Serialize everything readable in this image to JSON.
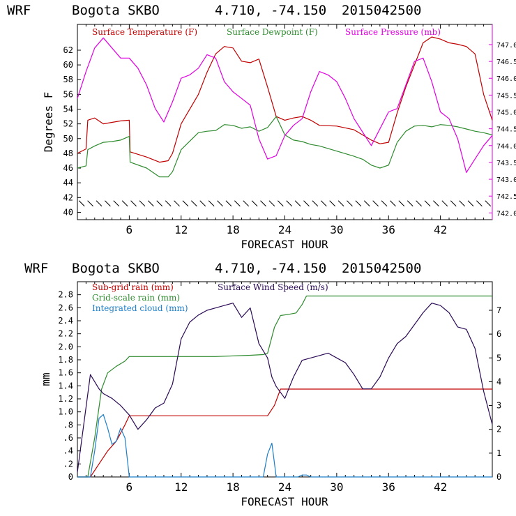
{
  "colors": {
    "temperature": "#c00000",
    "dewpoint": "#2e8b2e",
    "pressure": "#e000e0",
    "subgrid_rain": "#c00000",
    "gridscale_rain": "#2e8b2e",
    "cloud": "#1e7fc8",
    "wind": "#2a0a55"
  },
  "chart_data": [
    {
      "type": "line",
      "title": {
        "model": "WRF",
        "station": "Bogota SKBO",
        "coords": "4.710, -74.150",
        "init": "2015042500"
      },
      "xlabel": "FORECAST HOUR",
      "ylabel": "Degrees F",
      "xlim": [
        0,
        48
      ],
      "ylim": [
        39,
        65.5
      ],
      "y2lim": [
        741.8,
        747.6
      ],
      "x_ticks": [
        "6",
        "12",
        "18",
        "24",
        "30",
        "36",
        "42"
      ],
      "y_ticks": [
        "40",
        "42",
        "44",
        "46",
        "48",
        "50",
        "52",
        "54",
        "56",
        "58",
        "60",
        "62"
      ],
      "y2_ticks": [
        "742.0",
        "742.5",
        "743.0",
        "743.5",
        "744.0",
        "744.5",
        "745.0",
        "745.5",
        "746.0",
        "746.5",
        "747.0"
      ],
      "wind_barbs": "row of wind barbs along y=41",
      "series": [
        {
          "name": "Surface Temperature (F)",
          "axis": "left",
          "x": [
            0,
            1,
            1.2,
            2,
            3,
            4,
            5,
            6,
            6.1,
            8,
            9.5,
            10.5,
            11,
            12,
            14,
            15,
            16,
            17,
            18,
            19,
            20,
            21,
            22,
            23,
            24,
            25,
            26,
            27,
            28,
            30,
            32,
            33,
            34,
            35,
            36,
            37,
            38,
            39,
            40,
            41,
            42,
            43,
            44,
            45,
            46,
            47,
            48
          ],
          "values": [
            48.0,
            48.6,
            52.5,
            52.8,
            52.0,
            52.2,
            52.4,
            52.5,
            48.2,
            47.5,
            46.8,
            47.0,
            48.0,
            52.0,
            56.0,
            59.0,
            61.5,
            62.5,
            62.3,
            60.5,
            60.3,
            60.8,
            57.0,
            53.0,
            52.5,
            52.8,
            53.0,
            52.5,
            51.8,
            51.7,
            51.2,
            50.5,
            49.8,
            49.3,
            49.5,
            53.5,
            57.0,
            60.0,
            63.0,
            63.8,
            63.5,
            63.0,
            62.8,
            62.5,
            61.5,
            56.0,
            52.5
          ]
        },
        {
          "name": "Surface Dewpoint (F)",
          "axis": "left",
          "x": [
            0,
            1,
            1.2,
            2,
            3,
            4,
            5,
            6,
            6.1,
            8,
            9.5,
            10.5,
            11,
            12,
            14,
            15,
            16,
            17,
            18,
            19,
            20,
            21,
            22,
            23,
            24,
            25,
            26,
            27,
            28,
            30,
            32,
            33,
            34,
            35,
            36,
            37,
            38,
            39,
            40,
            41,
            42,
            43,
            44,
            45,
            46,
            47,
            48
          ],
          "values": [
            46.0,
            46.3,
            48.5,
            49.0,
            49.5,
            49.6,
            49.8,
            50.3,
            46.8,
            46.0,
            44.8,
            44.8,
            45.5,
            48.5,
            50.8,
            51.0,
            51.1,
            51.9,
            51.8,
            51.4,
            51.6,
            51.0,
            51.5,
            53.0,
            50.5,
            49.8,
            49.6,
            49.2,
            49.0,
            48.3,
            47.6,
            47.2,
            46.4,
            46.0,
            46.4,
            49.5,
            51.0,
            51.7,
            51.8,
            51.6,
            51.9,
            51.8,
            51.6,
            51.3,
            51.0,
            50.8,
            50.5
          ]
        },
        {
          "name": "Surface Pressure (mb)",
          "axis": "right",
          "x": [
            0,
            1,
            2,
            3,
            4,
            5,
            6,
            7,
            8,
            9,
            10,
            11,
            12,
            13,
            14,
            15,
            16,
            17,
            18,
            19,
            20,
            21,
            22,
            23,
            24,
            25,
            26,
            27,
            28,
            29,
            30,
            31,
            32,
            33,
            34,
            35,
            36,
            37,
            38,
            39,
            40,
            41,
            42,
            43,
            44,
            45,
            46,
            47,
            48
          ],
          "values": [
            745.4,
            746.2,
            746.9,
            747.2,
            746.9,
            746.6,
            746.6,
            746.3,
            745.8,
            745.1,
            744.7,
            745.3,
            746.0,
            746.1,
            746.3,
            746.7,
            746.6,
            745.9,
            745.6,
            745.4,
            745.2,
            744.2,
            743.6,
            743.7,
            744.3,
            744.6,
            744.8,
            745.6,
            746.2,
            746.1,
            745.9,
            745.4,
            744.8,
            744.4,
            744.0,
            744.5,
            745.0,
            745.1,
            745.8,
            746.5,
            746.6,
            745.9,
            745.0,
            744.8,
            744.2,
            743.2,
            743.6,
            744.0,
            744.3
          ]
        }
      ]
    },
    {
      "type": "line",
      "title": {
        "model": "WRF",
        "station": "Bogota SKBO",
        "coords": "4.710, -74.150",
        "init": "2015042500"
      },
      "xlabel": "FORECAST HOUR",
      "ylabel": "mm",
      "xlim": [
        0,
        48
      ],
      "ylim": [
        0,
        3.0
      ],
      "y2lim": [
        0,
        8.2
      ],
      "x_ticks": [
        "6",
        "12",
        "18",
        "24",
        "30",
        "36",
        "42"
      ],
      "y_ticks": [
        "0",
        ".2",
        ".4",
        ".6",
        ".8",
        "1.0",
        "1.2",
        "1.4",
        "1.6",
        "1.8",
        "2.0",
        "2.2",
        "2.4",
        "2.6",
        "2.8"
      ],
      "y2_ticks": [
        "0",
        "1",
        "2",
        "3",
        "4",
        "5",
        "6",
        "7"
      ],
      "series": [
        {
          "name": "Sub-grid rain (mm)",
          "axis": "left",
          "x": [
            0,
            1.5,
            2.5,
            3.5,
            4.5,
            5.5,
            6,
            8,
            10,
            12,
            16,
            20,
            22,
            22.8,
            23.5,
            30,
            36,
            42,
            48
          ],
          "values": [
            0,
            0,
            0.2,
            0.4,
            0.55,
            0.8,
            0.94,
            0.94,
            0.94,
            0.94,
            0.94,
            0.94,
            0.94,
            1.1,
            1.35,
            1.35,
            1.35,
            1.35,
            1.35
          ]
        },
        {
          "name": "Grid-scale rain (mm)",
          "axis": "left",
          "x": [
            0,
            1.2,
            2,
            2.8,
            3.5,
            4.5,
            5.5,
            6,
            8,
            12,
            16,
            20,
            21.5,
            22,
            22.8,
            23.5,
            24.5,
            25.3,
            26,
            26.5,
            30,
            36,
            42,
            48
          ],
          "values": [
            0,
            0,
            0.6,
            1.35,
            1.6,
            1.7,
            1.78,
            1.85,
            1.85,
            1.85,
            1.85,
            1.87,
            1.88,
            1.9,
            2.3,
            2.48,
            2.5,
            2.52,
            2.65,
            2.78,
            2.78,
            2.78,
            2.78,
            2.78
          ]
        },
        {
          "name": "Integrated cloud (mm)",
          "axis": "left",
          "x": [
            0,
            1.5,
            2,
            2.5,
            3,
            3.5,
            4,
            4.5,
            5,
            5.5,
            6,
            6.5,
            21.5,
            22,
            22.5,
            23,
            25.5,
            26,
            26.5,
            27,
            48
          ],
          "values": [
            0,
            0,
            0.4,
            0.9,
            0.96,
            0.75,
            0.5,
            0.55,
            0.75,
            0.6,
            0,
            0,
            0,
            0.35,
            0.52,
            0,
            0,
            0.03,
            0.03,
            0,
            0
          ]
        },
        {
          "name": "Surface Wind Speed (m/s)",
          "axis": "right",
          "x": [
            0,
            1.5,
            2,
            2.5,
            3,
            4,
            5,
            6,
            7,
            8,
            9,
            10,
            11,
            12,
            13,
            14,
            15,
            16,
            17,
            18,
            19,
            20,
            21,
            22,
            22.5,
            23,
            24,
            25,
            26,
            27,
            28,
            29,
            30,
            31,
            32,
            33,
            34,
            35,
            36,
            37,
            38,
            39,
            40,
            41,
            42,
            43,
            44,
            45,
            46,
            47,
            48
          ],
          "values": [
            0.2,
            4.3,
            4.0,
            3.7,
            3.5,
            3.3,
            3.0,
            2.6,
            2.0,
            2.4,
            2.9,
            3.1,
            3.9,
            5.8,
            6.5,
            6.8,
            7.0,
            7.1,
            7.2,
            7.3,
            6.7,
            7.1,
            5.6,
            5.0,
            4.2,
            3.8,
            3.3,
            4.2,
            4.9,
            5.0,
            5.1,
            5.2,
            5.0,
            4.8,
            4.3,
            3.7,
            3.7,
            4.2,
            5.0,
            5.6,
            5.9,
            6.4,
            6.9,
            7.3,
            7.2,
            6.9,
            6.3,
            6.2,
            5.4,
            3.6,
            2.2
          ]
        }
      ]
    }
  ]
}
